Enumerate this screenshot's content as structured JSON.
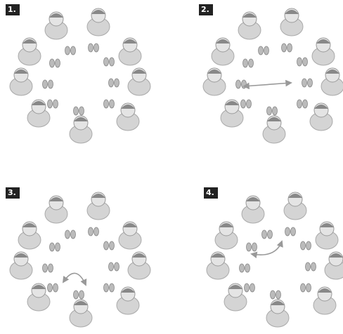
{
  "panels": [
    {
      "label": "1."
    },
    {
      "label": "2."
    },
    {
      "label": "3."
    },
    {
      "label": "4."
    }
  ]
}
